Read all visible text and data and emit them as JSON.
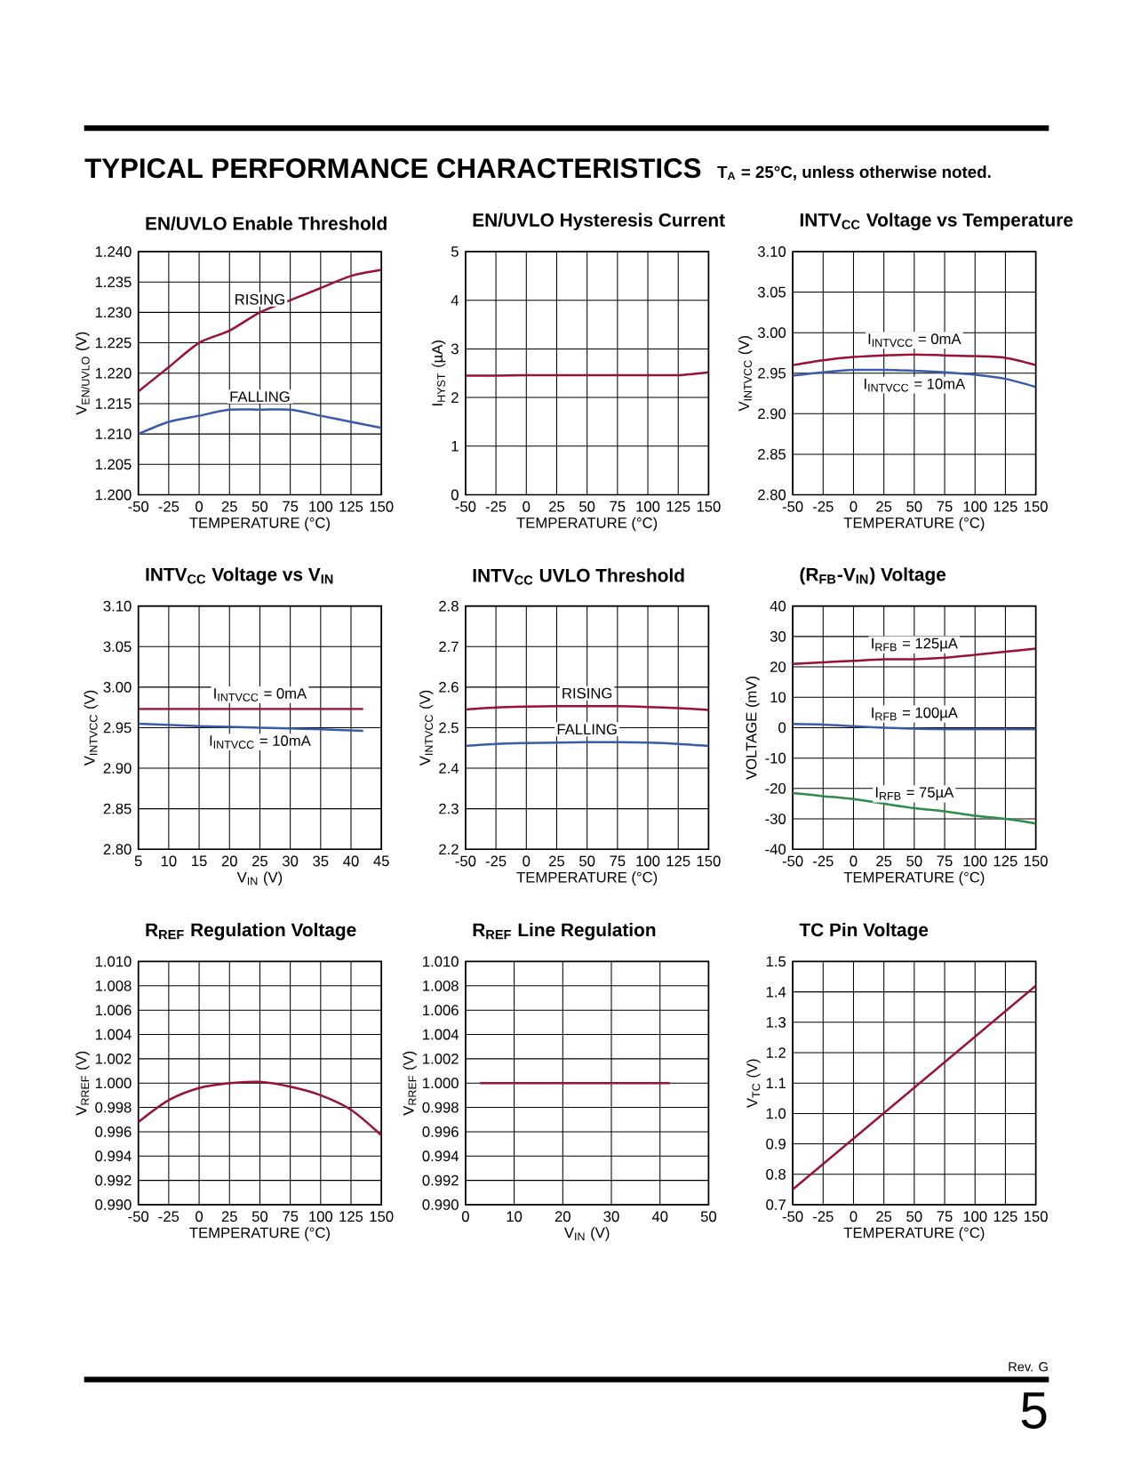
{
  "chart_data": [
    {
      "type": "line",
      "title": "EN/UVLO Enable Threshold",
      "xlabel": "TEMPERATURE (°C)",
      "ylabel": "V$_{EN/UVLO}$ (V)",
      "grid": true,
      "annotations": [
        "TYPICAL PERFORMANCE CHARACTERISTICS",
        "T$_{A}$ = 25°C, unless otherwise noted."
      ],
      "x": [
        -50,
        -25,
        0,
        25,
        50,
        75,
        100,
        125,
        150
      ],
      "series": [
        {
          "name": "RISING",
          "color": "#9b1035",
          "values": [
            1.217,
            1.221,
            1.225,
            1.227,
            1.23,
            1.232,
            1.234,
            1.236,
            1.237
          ]
        },
        {
          "name": "FALLING",
          "color": "#3a5bab",
          "values": [
            1.21,
            1.212,
            1.213,
            1.214,
            1.214,
            1.214,
            1.213,
            1.212,
            1.211
          ]
        }
      ],
      "xlim": [
        -50,
        150
      ],
      "xticks": [
        -50,
        -25,
        0,
        25,
        50,
        75,
        100,
        125,
        150
      ],
      "ylim": [
        1.2,
        1.24
      ],
      "yticks": [
        {
          "value": 1.2,
          "label": "1.200"
        },
        {
          "value": 1.205,
          "label": "1.205"
        },
        {
          "value": 1.21,
          "label": "1.210"
        },
        {
          "value": 1.215,
          "label": "1.215"
        },
        {
          "value": 1.22,
          "label": "1.220"
        },
        {
          "value": 1.225,
          "label": "1.225"
        },
        {
          "value": 1.23,
          "label": "1.230"
        },
        {
          "value": 1.235,
          "label": "1.235"
        },
        {
          "value": 1.24,
          "label": "1.240"
        }
      ]
    },
    {
      "type": "line",
      "title": "EN/UVLO Hysteresis Current",
      "xlabel": "TEMPERATURE (°C)",
      "ylabel": "I$_{HYST}$ (µA)",
      "grid": true,
      "x": [
        -50,
        -25,
        0,
        25,
        50,
        75,
        100,
        125,
        150
      ],
      "series": [
        {
          "color": "#9b1035",
          "values": [
            2.45,
            2.45,
            2.46,
            2.46,
            2.46,
            2.46,
            2.46,
            2.46,
            2.52
          ]
        }
      ],
      "xlim": [
        -50,
        150
      ],
      "xticks": [
        -50,
        -25,
        0,
        25,
        50,
        75,
        100,
        125,
        150
      ],
      "ylim": [
        0,
        5
      ],
      "yticks": [
        0,
        1,
        2,
        3,
        4,
        5
      ]
    },
    {
      "type": "line",
      "title": "INTV$_{CC}$ Voltage vs Temperature",
      "xlabel": "TEMPERATURE (°C)",
      "ylabel": "V$_{INTVCC}$ (V)",
      "grid": true,
      "x": [
        -50,
        -25,
        0,
        25,
        50,
        75,
        100,
        125,
        150
      ],
      "series": [
        {
          "name": "I$_{INTVCC}$ = 0mA",
          "color": "#9b1035",
          "values": [
            2.96,
            2.966,
            2.97,
            2.972,
            2.973,
            2.972,
            2.971,
            2.969,
            2.96
          ]
        },
        {
          "name": "I$_{INTVCC}$ = 10mA",
          "color": "#3a5bab",
          "values": [
            2.947,
            2.951,
            2.954,
            2.954,
            2.953,
            2.951,
            2.948,
            2.943,
            2.933
          ]
        }
      ],
      "xlim": [
        -50,
        150
      ],
      "xticks": [
        -50,
        -25,
        0,
        25,
        50,
        75,
        100,
        125,
        150
      ],
      "ylim": [
        2.8,
        3.1
      ],
      "yticks": [
        {
          "value": 2.8,
          "label": "2.80"
        },
        2.85,
        {
          "value": 2.9,
          "label": "2.90"
        },
        2.95,
        {
          "value": 3.0,
          "label": "3.00"
        },
        3.05,
        {
          "value": 3.1,
          "label": "3.10"
        }
      ]
    },
    {
      "type": "line",
      "title": "INTV$_{CC}$ Voltage vs V$_{IN}$",
      "xlabel": "V$_{IN}$ (V)",
      "ylabel": "V$_{INTVCC}$ (V)",
      "grid": true,
      "x": [
        5,
        15,
        25,
        35,
        42
      ],
      "series": [
        {
          "name": "I$_{INTVCC}$ = 0mA",
          "color": "#9b1035",
          "values": [
            2.973,
            2.973,
            2.973,
            2.973,
            2.973
          ]
        },
        {
          "name": "I$_{INTVCC}$ = 10mA",
          "color": "#3a5bab",
          "values": [
            2.955,
            2.952,
            2.95,
            2.948,
            2.946
          ]
        }
      ],
      "xlim": [
        5,
        45
      ],
      "xticks": [
        5,
        10,
        15,
        20,
        25,
        30,
        35,
        40,
        45
      ],
      "ylim": [
        2.8,
        3.1
      ],
      "yticks": [
        {
          "value": 2.8,
          "label": "2.80"
        },
        2.85,
        {
          "value": 2.9,
          "label": "2.90"
        },
        2.95,
        {
          "value": 3.0,
          "label": "3.00"
        },
        3.05,
        {
          "value": 3.1,
          "label": "3.10"
        }
      ]
    },
    {
      "type": "line",
      "title": "INTV$_{CC}$ UVLO Threshold",
      "xlabel": "TEMPERATURE (°C)",
      "ylabel": "V$_{INTVCC}$ (V)",
      "grid": true,
      "x": [
        -50,
        -25,
        0,
        25,
        50,
        75,
        100,
        125,
        150
      ],
      "series": [
        {
          "name": "RISING",
          "color": "#9b1035",
          "values": [
            2.545,
            2.55,
            2.552,
            2.553,
            2.553,
            2.553,
            2.551,
            2.548,
            2.544
          ]
        },
        {
          "name": "FALLING",
          "color": "#3a5bab",
          "values": [
            2.455,
            2.46,
            2.462,
            2.463,
            2.464,
            2.464,
            2.463,
            2.46,
            2.455
          ]
        }
      ],
      "xlim": [
        -50,
        150
      ],
      "xticks": [
        -50,
        -25,
        0,
        25,
        50,
        75,
        100,
        125,
        150
      ],
      "ylim": [
        2.2,
        2.8
      ],
      "yticks": [
        2.2,
        2.3,
        2.4,
        2.5,
        2.6,
        2.7,
        2.8
      ]
    },
    {
      "type": "line",
      "title": "(R$_{FB}$-V$_{IN}$) Voltage",
      "xlabel": "TEMPERATURE (°C)",
      "ylabel": "VOLTAGE (mV)",
      "grid": true,
      "x": [
        -50,
        -25,
        0,
        25,
        50,
        75,
        100,
        125,
        150
      ],
      "series": [
        {
          "name": "I$_{RFB}$ = 125µA",
          "color": "#9b1035",
          "values": [
            21,
            21.5,
            22,
            22.5,
            22.5,
            23,
            24,
            25,
            26
          ]
        },
        {
          "name": "I$_{RFB}$ = 100µA",
          "color": "#3a5bab",
          "values": [
            1.2,
            1,
            0.5,
            0,
            -0.3,
            -0.5,
            -0.5,
            -0.5,
            -0.5
          ]
        },
        {
          "name": "I$_{RFB}$ = 75µA",
          "color": "#2e8b4a",
          "values": [
            -21.5,
            -22.5,
            -23.5,
            -25,
            -26.5,
            -27.5,
            -29,
            -30,
            -31.5
          ]
        }
      ],
      "xlim": [
        -50,
        150
      ],
      "xticks": [
        -50,
        -25,
        0,
        25,
        50,
        75,
        100,
        125,
        150
      ],
      "ylim": [
        -40,
        40
      ],
      "yticks": [
        -40,
        -30,
        -20,
        -10,
        0,
        10,
        20,
        30,
        40
      ]
    },
    {
      "type": "line",
      "title": "R$_{REF}$ Regulation Voltage",
      "xlabel": "TEMPERATURE (°C)",
      "ylabel": "V$_{RREF}$ (V)",
      "grid": true,
      "x": [
        -50,
        -25,
        0,
        25,
        50,
        75,
        100,
        125,
        150
      ],
      "series": [
        {
          "color": "#9b1035",
          "values": [
            0.9968,
            0.9986,
            0.9996,
            1.0,
            1.0001,
            0.9997,
            0.999,
            0.9978,
            0.9957
          ]
        }
      ],
      "xlim": [
        -50,
        150
      ],
      "xticks": [
        -50,
        -25,
        0,
        25,
        50,
        75,
        100,
        125,
        150
      ],
      "ylim": [
        0.99,
        1.01
      ],
      "yticks": [
        {
          "value": 0.99,
          "label": "0.990"
        },
        {
          "value": 0.992,
          "label": "0.992"
        },
        {
          "value": 0.994,
          "label": "0.994"
        },
        {
          "value": 0.996,
          "label": "0.996"
        },
        {
          "value": 0.998,
          "label": "0.998"
        },
        {
          "value": 1.0,
          "label": "1.000"
        },
        {
          "value": 1.002,
          "label": "1.002"
        },
        {
          "value": 1.004,
          "label": "1.004"
        },
        {
          "value": 1.006,
          "label": "1.006"
        },
        {
          "value": 1.008,
          "label": "1.008"
        },
        {
          "value": 1.01,
          "label": "1.010"
        }
      ]
    },
    {
      "type": "line",
      "title": "R$_{REF}$ Line Regulation",
      "xlabel": "V$_{IN}$ (V)",
      "ylabel": "V$_{RREF}$ (V)",
      "grid": true,
      "x": [
        3,
        42
      ],
      "series": [
        {
          "color": "#9b1035",
          "values": [
            1.0,
            1.0
          ]
        }
      ],
      "xlim": [
        0,
        50
      ],
      "xticks": [
        0,
        10,
        20,
        30,
        40,
        50
      ],
      "ylim": [
        0.99,
        1.01
      ],
      "yticks": [
        {
          "value": 0.99,
          "label": "0.990"
        },
        {
          "value": 0.992,
          "label": "0.992"
        },
        {
          "value": 0.994,
          "label": "0.994"
        },
        {
          "value": 0.996,
          "label": "0.996"
        },
        {
          "value": 0.998,
          "label": "0.998"
        },
        {
          "value": 1.0,
          "label": "1.000"
        },
        {
          "value": 1.002,
          "label": "1.002"
        },
        {
          "value": 1.004,
          "label": "1.004"
        },
        {
          "value": 1.006,
          "label": "1.006"
        },
        {
          "value": 1.008,
          "label": "1.008"
        },
        {
          "value": 1.01,
          "label": "1.010"
        }
      ]
    },
    {
      "type": "line",
      "title": "TC Pin Voltage",
      "xlabel": "TEMPERATURE (°C)",
      "ylabel": "V$_{TC}$ (V)",
      "grid": true,
      "annotations": [
        "Rev. G",
        "5"
      ],
      "x": [
        -50,
        150
      ],
      "series": [
        {
          "color": "#9b1035",
          "values": [
            0.75,
            1.42
          ]
        }
      ],
      "xlim": [
        -50,
        150
      ],
      "xticks": [
        -50,
        -25,
        0,
        25,
        50,
        75,
        100,
        125,
        150
      ],
      "ylim": [
        0.7,
        1.5
      ],
      "yticks": [
        0.7,
        0.8,
        0.9,
        {
          "value": 1.0,
          "label": "1.0"
        },
        1.1,
        1.2,
        1.3,
        1.4,
        1.5
      ]
    }
  ]
}
